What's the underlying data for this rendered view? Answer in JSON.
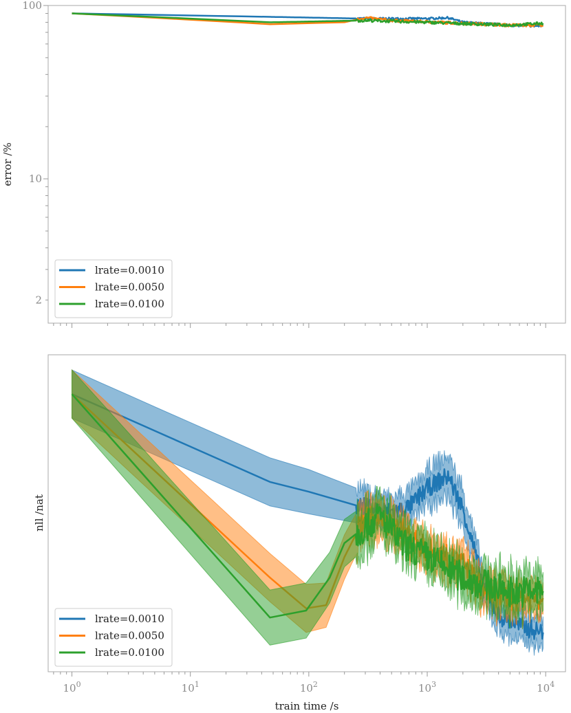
{
  "chart_data": [
    {
      "type": "line",
      "panel": "top",
      "xscale": "log",
      "yscale": "log",
      "xlim": [
        0.63,
        14700
      ],
      "ylim": [
        1.47,
        100
      ],
      "xlabel": "",
      "ylabel": "error /%",
      "yticks": [
        {
          "value": 100,
          "label": "100"
        },
        {
          "value": 10,
          "label": "10"
        },
        {
          "value": 2,
          "label": "2"
        }
      ],
      "legend": "lower-left",
      "series": [
        {
          "name": "lrate=0.0010",
          "color": "#1f77b4",
          "noise": 1.2,
          "x": [
            1,
            47,
            300,
            1000,
            1500,
            2000,
            5000,
            9500
          ],
          "y": [
            90,
            86,
            84,
            84,
            85,
            80,
            77,
            76
          ]
        },
        {
          "name": "lrate=0.0050",
          "color": "#ff7f0e",
          "noise": 1.5,
          "x": [
            1,
            47,
            200,
            300,
            500,
            2000,
            5000,
            9500
          ],
          "y": [
            90,
            78,
            80,
            85,
            82,
            79,
            77,
            77
          ]
        },
        {
          "name": "lrate=0.0100",
          "color": "#2ca02c",
          "noise": 1.5,
          "x": [
            1,
            47,
            300,
            1000,
            5000,
            9500
          ],
          "y": [
            90,
            80,
            82,
            80,
            77,
            79
          ]
        }
      ]
    },
    {
      "type": "line",
      "panel": "bottom",
      "xscale": "log",
      "yscale": "linear",
      "xlim": [
        0.63,
        14700
      ],
      "ylim": [
        0,
        100
      ],
      "xlabel": "train time /s",
      "ylabel": "nll /nat",
      "xticks": [
        {
          "value": 1,
          "base": "10",
          "exp": "0"
        },
        {
          "value": 10,
          "base": "10",
          "exp": "1"
        },
        {
          "value": 100,
          "base": "10",
          "exp": "2"
        },
        {
          "value": 1000,
          "base": "10",
          "exp": "3"
        },
        {
          "value": 10000,
          "base": "10",
          "exp": "4"
        }
      ],
      "legend": "lower-left",
      "series": [
        {
          "name": "lrate=0.0010",
          "color": "#1f77b4",
          "noise": 3,
          "x": [
            1,
            47,
            100,
            250,
            500,
            700,
            1000,
            1500,
            2000,
            2500,
            3000,
            4000,
            6000,
            9500
          ],
          "y": [
            87.6,
            59.9,
            56.8,
            52.5,
            50.3,
            51.8,
            57.9,
            61.8,
            51.4,
            38.4,
            26.5,
            17.8,
            14.5,
            12.4
          ],
          "band": [
            7.6,
            7.6,
            7.0,
            5.5,
            4.5,
            5.0,
            5.5,
            6.5,
            6.0,
            5.0,
            5.0,
            5.0,
            5.0,
            5.0
          ]
        },
        {
          "name": "lrate=0.0050",
          "color": "#ff7f0e",
          "noise": 4,
          "x": [
            1,
            47,
            95,
            140,
            200,
            300,
            400,
            600,
            1000,
            2000,
            3000,
            5000,
            9500
          ],
          "y": [
            87.6,
            29.7,
            20.0,
            21.0,
            36.2,
            49.2,
            47.1,
            44.9,
            38.4,
            34.1,
            25.4,
            23.2,
            23.2
          ],
          "band": [
            7.6,
            7.6,
            7.6,
            7.0,
            7.0,
            6.0,
            5.5,
            5.0,
            5.0,
            5.0,
            5.0,
            5.0,
            5.0
          ]
        },
        {
          "name": "lrate=0.0100",
          "color": "#2ca02c",
          "noise": 5,
          "x": [
            1,
            47,
            95,
            150,
            200,
            280,
            400,
            600,
            1000,
            2000,
            3000,
            5000,
            9500
          ],
          "y": [
            87.6,
            17.1,
            19.3,
            29.7,
            40.6,
            44.9,
            49.2,
            40.6,
            36.2,
            29.7,
            27.5,
            25.4,
            25.4
          ],
          "band": [
            7.6,
            8.7,
            8.7,
            8.0,
            7.5,
            7.0,
            6.0,
            5.5,
            5.5,
            5.5,
            5.5,
            6.0,
            6.0
          ]
        }
      ]
    }
  ]
}
